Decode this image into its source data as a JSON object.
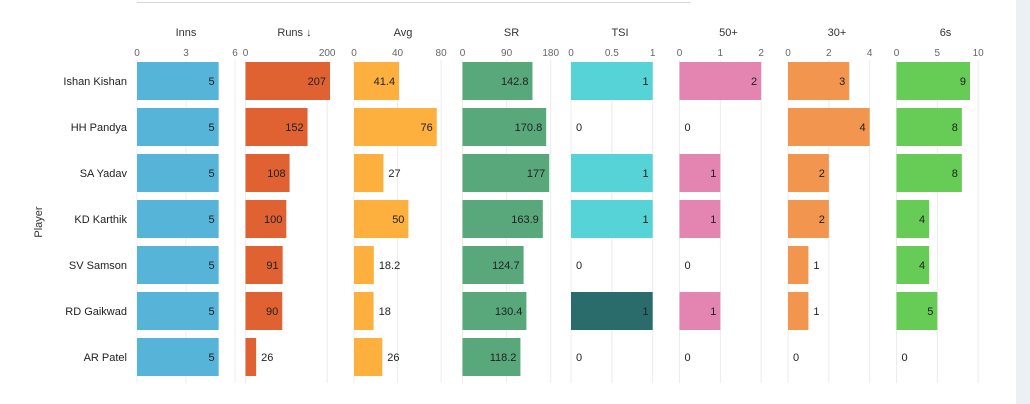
{
  "chart_data": {
    "type": "bar",
    "orientation": "horizontal",
    "ylabel": "Player",
    "categories": [
      "Ishan Kishan",
      "HH Pandya",
      "SA Yadav",
      "KD Karthik",
      "SV Samson",
      "RD Gaikwad",
      "AR Patel"
    ],
    "series": [
      {
        "name": "Inns",
        "domain": [
          0,
          6
        ],
        "ticks": [
          0,
          3,
          6
        ],
        "values": [
          5,
          5,
          5,
          5,
          5,
          5,
          5
        ],
        "labels": [
          "5",
          "5",
          "5",
          "5",
          "5",
          "5",
          "5"
        ],
        "color": "#56b4d9"
      },
      {
        "name": "Runs ↓",
        "domain": [
          0,
          240
        ],
        "ticks": [
          0,
          200
        ],
        "values": [
          207,
          152,
          108,
          100,
          91,
          90,
          26
        ],
        "labels": [
          "207",
          "152",
          "108",
          "100",
          "91",
          "90",
          "26"
        ],
        "color": "#e06232"
      },
      {
        "name": "Avg",
        "domain": [
          0,
          90
        ],
        "ticks": [
          0,
          40,
          80
        ],
        "values": [
          41.4,
          76,
          27,
          50,
          18.2,
          18,
          26
        ],
        "labels": [
          "41.4",
          "76",
          "27",
          "50",
          "18.2",
          "18",
          "26"
        ],
        "color": "#fdb03e"
      },
      {
        "name": "SR",
        "domain": [
          0,
          200
        ],
        "ticks": [
          0,
          90,
          180
        ],
        "values": [
          142.8,
          170.8,
          177,
          163.9,
          124.7,
          130.4,
          118.2
        ],
        "labels": [
          "142.8",
          "170.8",
          "177",
          "163.9",
          "124.7",
          "130.4",
          "118.2"
        ],
        "color": "#58a87c"
      },
      {
        "name": "TSI",
        "domain": [
          0,
          1.2
        ],
        "ticks": [
          0,
          0.5,
          1
        ],
        "values": [
          1,
          0,
          1,
          1,
          0,
          1,
          0
        ],
        "labels": [
          "1",
          "0",
          "1",
          "1",
          "0",
          "1",
          "0"
        ],
        "color": "#56d3d6",
        "highlight": {
          "index": 5,
          "color": "#2a6b6b"
        }
      },
      {
        "name": "50+",
        "domain": [
          0,
          2.4
        ],
        "ticks": [
          0,
          1,
          2
        ],
        "values": [
          2,
          0,
          1,
          1,
          0,
          1,
          0
        ],
        "labels": [
          "2",
          "0",
          "1",
          "1",
          "0",
          "1",
          "0"
        ],
        "color": "#e484b0"
      },
      {
        "name": "30+",
        "domain": [
          0,
          4.8
        ],
        "ticks": [
          0,
          2,
          4
        ],
        "values": [
          3,
          4,
          2,
          2,
          1,
          1,
          0
        ],
        "labels": [
          "3",
          "4",
          "2",
          "2",
          "1",
          "1",
          "0"
        ],
        "color": "#f2954f"
      },
      {
        "name": "6s",
        "domain": [
          0,
          12
        ],
        "ticks": [
          0,
          5,
          10
        ],
        "values": [
          9,
          8,
          8,
          4,
          4,
          5,
          0
        ],
        "labels": [
          "9",
          "8",
          "8",
          "4",
          "4",
          "5",
          "0"
        ],
        "color": "#66cc55"
      }
    ]
  }
}
